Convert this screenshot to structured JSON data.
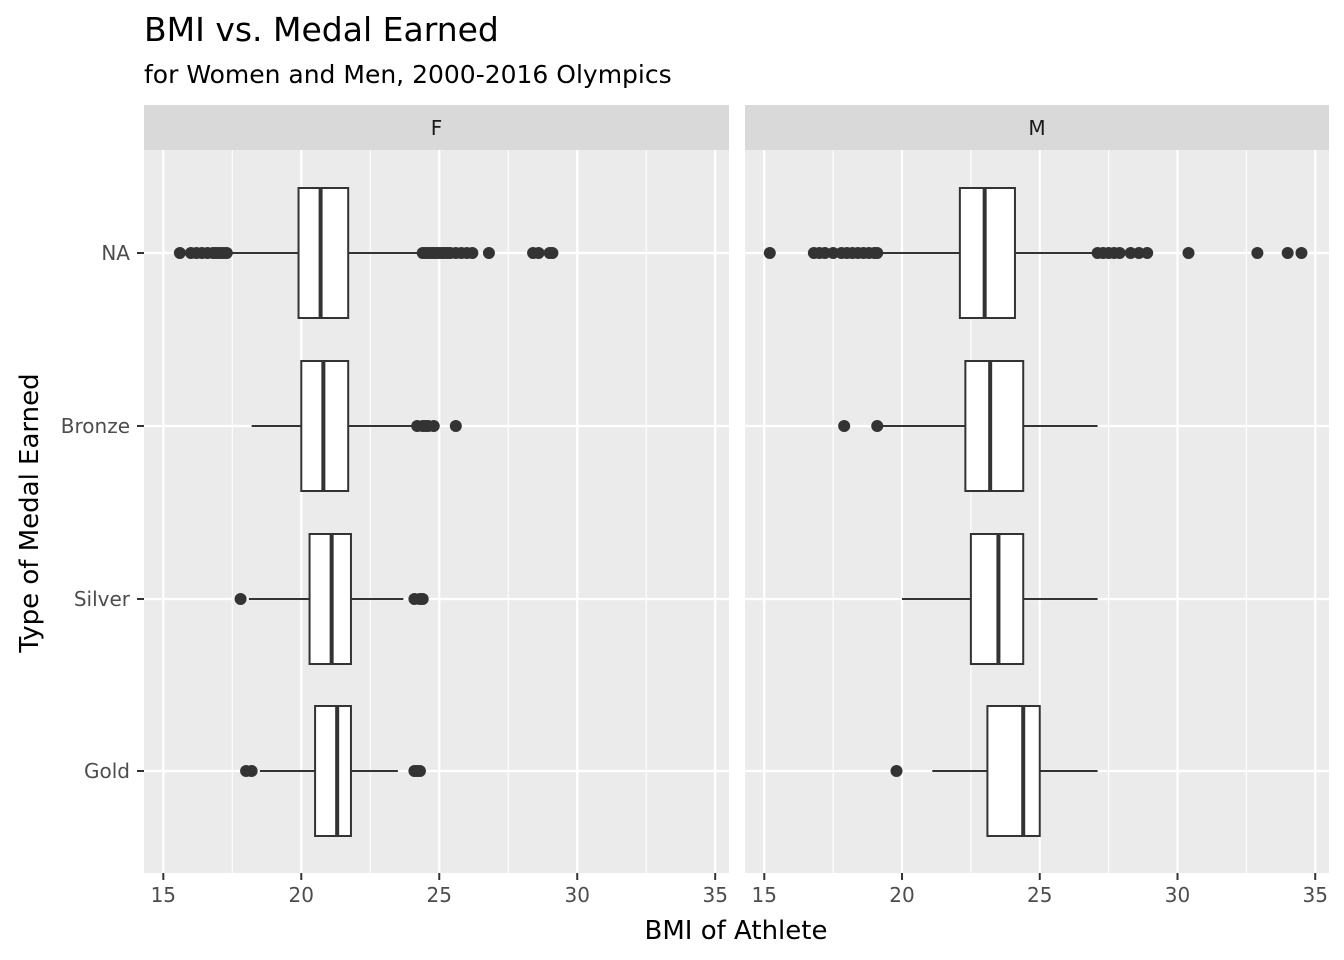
{
  "chart_data": {
    "type": "boxplot",
    "title": "BMI vs. Medal Earned",
    "subtitle": "for Women and Men, 2000-2016 Olympics",
    "xlabel": "BMI of Athlete",
    "ylabel": "Type of Medal Earned",
    "xlim": [
      14.3,
      35.5
    ],
    "x_ticks": [
      15,
      20,
      25,
      30,
      35
    ],
    "categories": [
      "NA",
      "Bronze",
      "Silver",
      "Gold"
    ],
    "grid": true,
    "panels": [
      {
        "name": "F",
        "boxes": [
          {
            "category": "NA",
            "whisker_low": 17.4,
            "q1": 19.9,
            "median": 20.7,
            "q3": 21.7,
            "whisker_high": 24.3,
            "outliers": [
              15.6,
              16.0,
              16.2,
              16.4,
              16.6,
              16.8,
              16.9,
              17.0,
              17.1,
              17.2,
              17.3,
              24.4,
              24.5,
              24.6,
              24.7,
              24.8,
              24.9,
              25.0,
              25.1,
              25.2,
              25.3,
              25.4,
              25.6,
              25.8,
              26.0,
              26.2,
              26.8,
              28.4,
              28.6,
              29.0,
              29.1
            ]
          },
          {
            "category": "Bronze",
            "whisker_low": 18.2,
            "q1": 20.0,
            "median": 20.8,
            "q3": 21.7,
            "whisker_high": 24.1,
            "outliers": [
              24.2,
              24.4,
              24.5,
              24.6,
              24.8,
              25.6
            ]
          },
          {
            "category": "Silver",
            "whisker_low": 18.1,
            "q1": 20.3,
            "median": 21.1,
            "q3": 21.8,
            "whisker_high": 23.7,
            "outliers": [
              17.8,
              24.1,
              24.3,
              24.4
            ]
          },
          {
            "category": "Gold",
            "whisker_low": 18.5,
            "q1": 20.5,
            "median": 21.3,
            "q3": 21.8,
            "whisker_high": 23.5,
            "outliers": [
              18.0,
              18.2,
              24.1,
              24.2,
              24.3
            ]
          }
        ]
      },
      {
        "name": "M",
        "boxes": [
          {
            "category": "NA",
            "whisker_low": 19.2,
            "q1": 22.1,
            "median": 23.0,
            "q3": 24.1,
            "whisker_high": 27.0,
            "outliers": [
              15.2,
              16.8,
              17.0,
              17.2,
              17.5,
              17.8,
              18.0,
              18.2,
              18.4,
              18.6,
              18.8,
              19.0,
              19.1,
              27.1,
              27.3,
              27.5,
              27.7,
              27.9,
              28.3,
              28.6,
              28.9,
              30.4,
              32.9,
              34.0,
              34.5
            ]
          },
          {
            "category": "Bronze",
            "whisker_low": 19.3,
            "q1": 22.3,
            "median": 23.2,
            "q3": 24.4,
            "whisker_high": 27.1,
            "outliers": [
              17.9,
              19.1
            ]
          },
          {
            "category": "Silver",
            "whisker_low": 20.0,
            "q1": 22.5,
            "median": 23.5,
            "q3": 24.4,
            "whisker_high": 27.1,
            "outliers": []
          },
          {
            "category": "Gold",
            "whisker_low": 21.1,
            "q1": 23.1,
            "median": 24.4,
            "q3": 25.0,
            "whisker_high": 27.1,
            "outliers": [
              19.8
            ]
          }
        ]
      }
    ]
  },
  "colors": {
    "panel_background": "#ebebeb",
    "strip_background": "#d9d9d9",
    "gridline": "#ffffff",
    "box_fill": "#ffffff",
    "box_stroke": "#333333",
    "point": "#333333"
  }
}
